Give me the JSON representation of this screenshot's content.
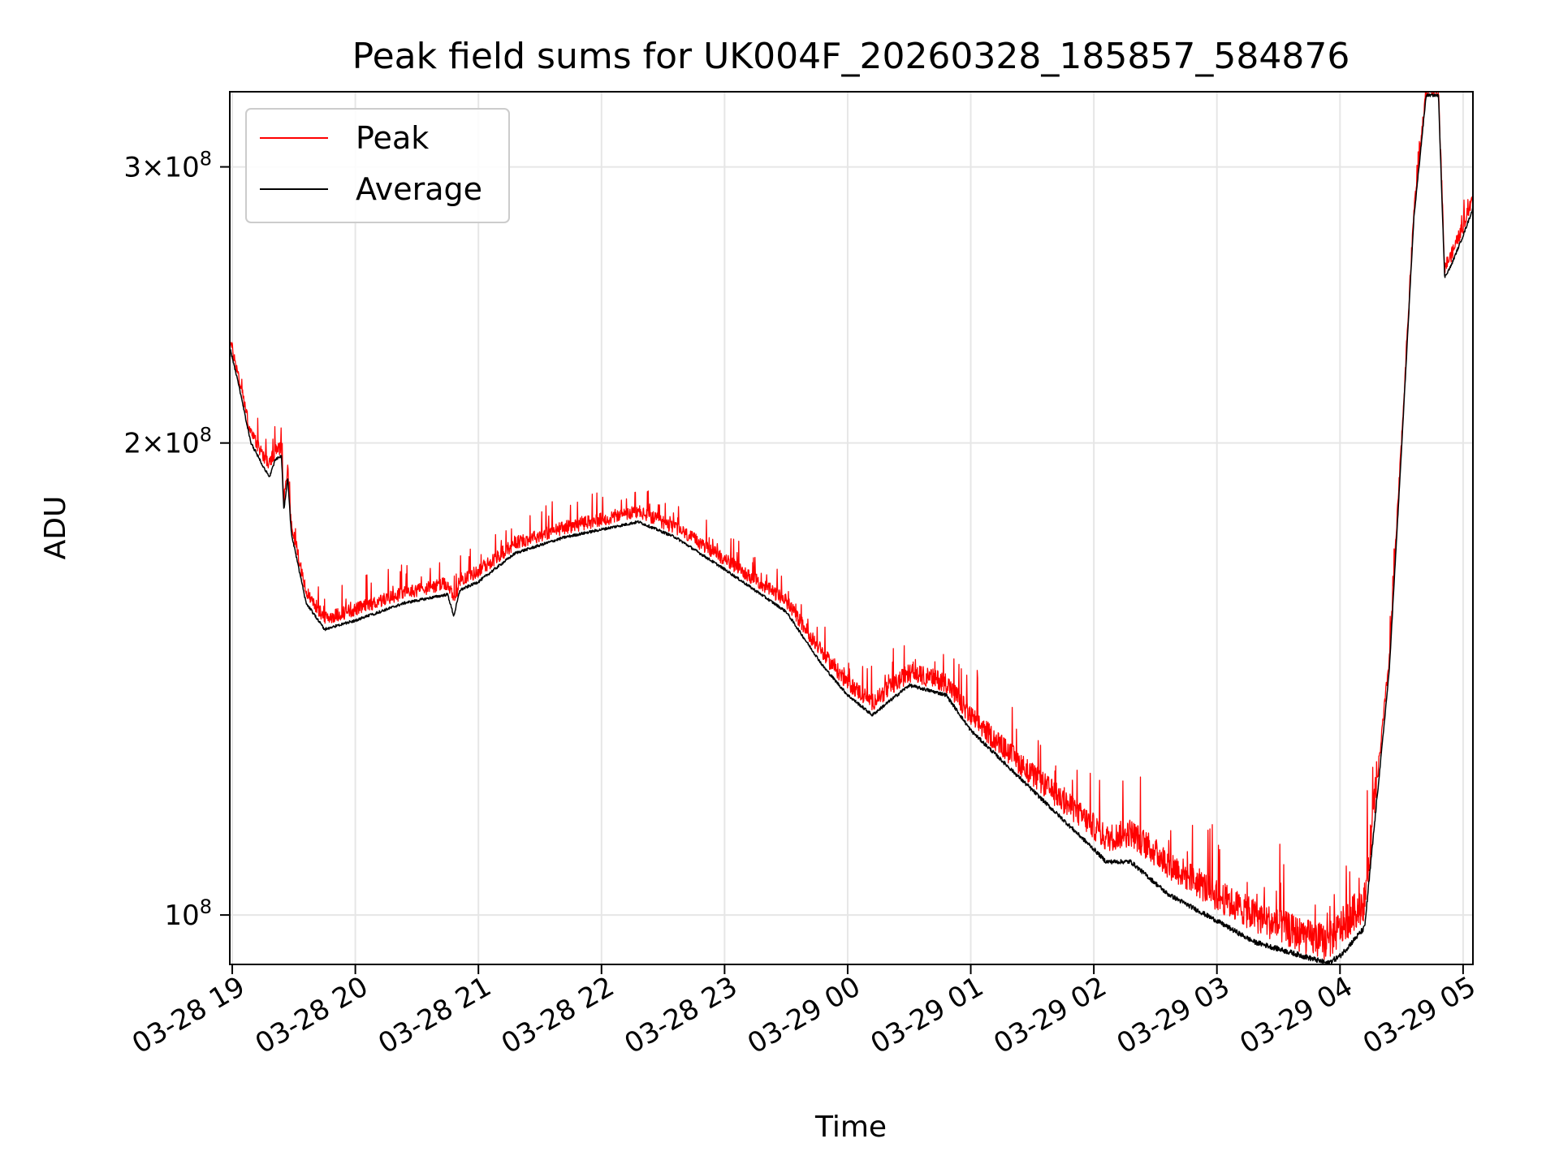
{
  "chart_data": {
    "type": "line",
    "title": "Peak field sums for UK004F_20260328_185857_584876",
    "xlabel": "Time",
    "ylabel": "ADU",
    "yscale": "log",
    "grid": true,
    "legend_position": "top-left",
    "xlim": [
      18.98,
      29.08
    ],
    "ylim": [
      93000000,
      335000000
    ],
    "x_ticks": [
      {
        "value": 19,
        "label": "03-28 19"
      },
      {
        "value": 20,
        "label": "03-28 20"
      },
      {
        "value": 21,
        "label": "03-28 21"
      },
      {
        "value": 22,
        "label": "03-28 22"
      },
      {
        "value": 23,
        "label": "03-28 23"
      },
      {
        "value": 24,
        "label": "03-29 00"
      },
      {
        "value": 25,
        "label": "03-29 01"
      },
      {
        "value": 26,
        "label": "03-29 02"
      },
      {
        "value": 27,
        "label": "03-29 03"
      },
      {
        "value": 28,
        "label": "03-29 04"
      },
      {
        "value": 29,
        "label": "03-29 05"
      }
    ],
    "y_ticks": [
      {
        "value": 100000000,
        "mantissa": "",
        "exponent": "8"
      },
      {
        "value": 200000000,
        "mantissa": "2",
        "exponent": "8"
      },
      {
        "value": 300000000,
        "mantissa": "3",
        "exponent": "8"
      }
    ],
    "x_unit_note": "hours since 2026-03-28 00:00",
    "series": [
      {
        "name": "Peak",
        "color": "#ff0000",
        "noise_fraction": 0.02,
        "noise_growth": 0.035,
        "x": [
          18.98,
          19.05,
          19.15,
          19.3,
          19.35,
          19.4,
          19.42,
          19.45,
          19.48,
          19.6,
          19.75,
          20.0,
          20.4,
          20.75,
          20.8,
          20.85,
          21.0,
          21.3,
          21.7,
          22.0,
          22.3,
          22.6,
          23.0,
          23.5,
          23.8,
          24.0,
          24.2,
          24.5,
          24.8,
          25.0,
          25.5,
          26.0,
          26.1,
          26.3,
          26.6,
          27.0,
          27.3,
          27.7,
          27.9,
          28.0,
          28.2,
          28.4,
          28.5,
          28.6,
          28.7,
          28.8,
          28.85,
          28.9,
          29.0,
          29.08
        ],
        "values": [
          232000000,
          220000000,
          202000000,
          193000000,
          197000000,
          198000000,
          183000000,
          192000000,
          177000000,
          160000000,
          154000000,
          156000000,
          160000000,
          162000000,
          158000000,
          163000000,
          165000000,
          172000000,
          176000000,
          178000000,
          180000000,
          176000000,
          168000000,
          158000000,
          146000000,
          140000000,
          136000000,
          142000000,
          140000000,
          133000000,
          122000000,
          113000000,
          111000000,
          112000000,
          107000000,
          102000000,
          99000000,
          96000000,
          95000000,
          97000000,
          101000000,
          145000000,
          200000000,
          280000000,
          335000000,
          335000000,
          258000000,
          262000000,
          274000000,
          285000000
        ]
      },
      {
        "name": "Average",
        "color": "#000000",
        "noise_fraction": 0.004,
        "noise_growth": 0.004,
        "x": [
          18.98,
          19.05,
          19.15,
          19.3,
          19.35,
          19.4,
          19.42,
          19.45,
          19.48,
          19.6,
          19.75,
          20.0,
          20.4,
          20.75,
          20.8,
          20.85,
          21.0,
          21.3,
          21.7,
          22.0,
          22.3,
          22.6,
          23.0,
          23.5,
          23.8,
          24.0,
          24.2,
          24.5,
          24.8,
          25.0,
          25.5,
          26.0,
          26.1,
          26.3,
          26.6,
          27.0,
          27.3,
          27.7,
          27.9,
          28.0,
          28.2,
          28.4,
          28.5,
          28.6,
          28.7,
          28.8,
          28.85,
          28.9,
          29.0,
          29.08
        ],
        "values": [
          230000000,
          218000000,
          200000000,
          190000000,
          195000000,
          196000000,
          181000000,
          190000000,
          175000000,
          158000000,
          152000000,
          154000000,
          158000000,
          160000000,
          155000000,
          161000000,
          163000000,
          170000000,
          174000000,
          176000000,
          178000000,
          174000000,
          166000000,
          156000000,
          144000000,
          138000000,
          134000000,
          140000000,
          138000000,
          131000000,
          120000000,
          110000000,
          108000000,
          108000000,
          103000000,
          99000000,
          96000000,
          94000000,
          93000000,
          94000000,
          98000000,
          143000000,
          198000000,
          278000000,
          333000000,
          333000000,
          255000000,
          259000000,
          271000000,
          282000000
        ]
      }
    ]
  }
}
